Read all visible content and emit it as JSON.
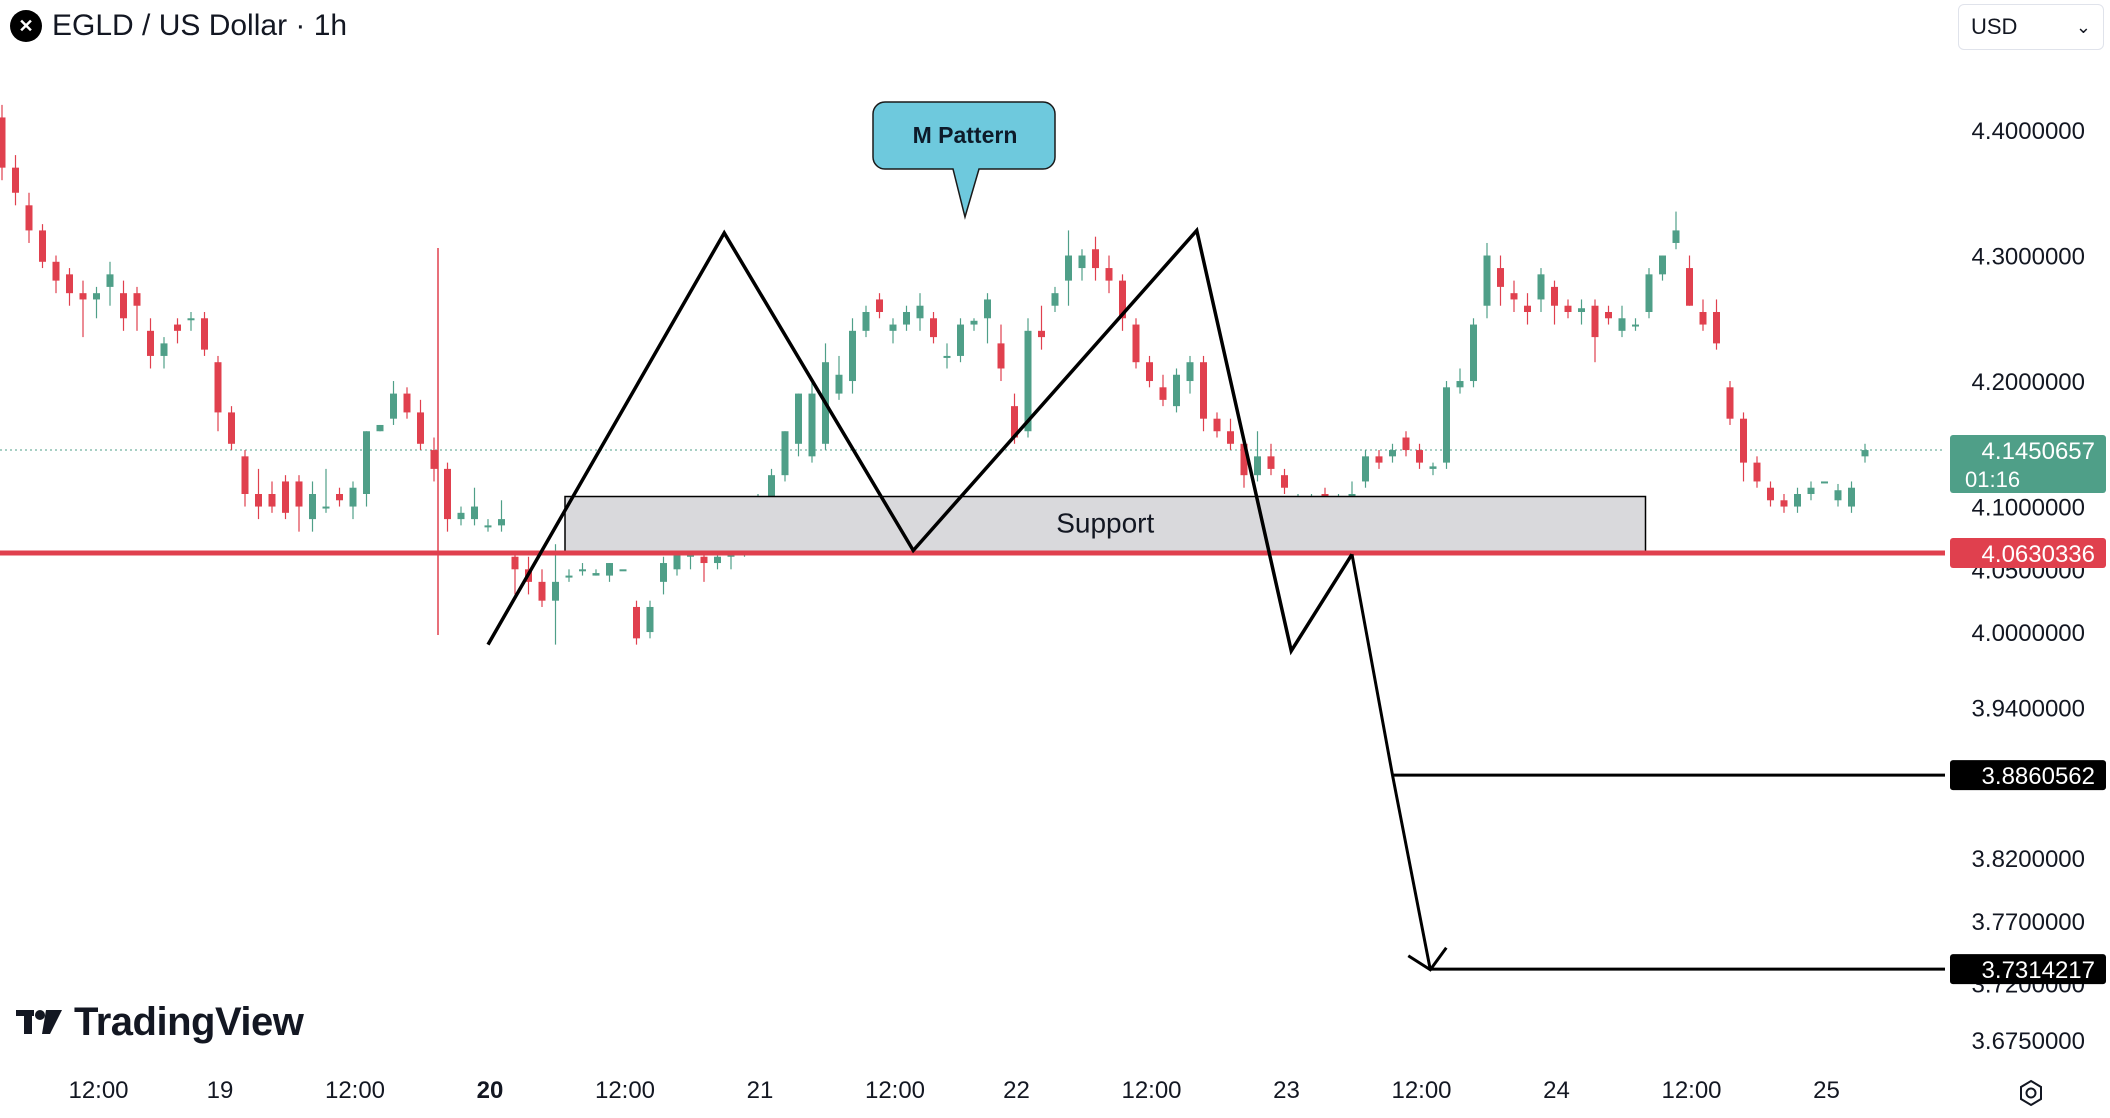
{
  "header": {
    "title": "EGLD / US Dollar · 1h",
    "logo_glyph": "✕"
  },
  "currency": {
    "selected": "USD"
  },
  "branding": {
    "name": "TradingView"
  },
  "colors": {
    "up": "#4f9f88",
    "down": "#e0404e",
    "support_line": "#e0404e",
    "support_fill": "#d9d9dc",
    "callout": "#6ec9dd",
    "target_label_bg": "#000000",
    "current_label_bg": "#4f9f88"
  },
  "chart_data": {
    "type": "candlestick",
    "ylim": [
      3.64,
      4.45
    ],
    "y_ticks": [
      {
        "value": 4.4,
        "label": "4.4000000"
      },
      {
        "value": 4.3,
        "label": "4.3000000"
      },
      {
        "value": 4.2,
        "label": "4.2000000"
      },
      {
        "value": 4.1,
        "label": "4.1000000"
      },
      {
        "value": 4.05,
        "label": "4.0500000"
      },
      {
        "value": 4.0,
        "label": "4.0000000"
      },
      {
        "value": 3.94,
        "label": "3.9400000"
      },
      {
        "value": 3.82,
        "label": "3.8200000"
      },
      {
        "value": 3.77,
        "label": "3.7700000"
      },
      {
        "value": 3.72,
        "label": "3.7200000"
      },
      {
        "value": 3.675,
        "label": "3.6750000"
      }
    ],
    "x_ticks": [
      {
        "index": 7,
        "label": "12:00",
        "bold": false
      },
      {
        "index": 16,
        "label": "19",
        "bold": false
      },
      {
        "index": 26,
        "label": "12:00",
        "bold": false
      },
      {
        "index": 36,
        "label": "20",
        "bold": true
      },
      {
        "index": 46,
        "label": "12:00",
        "bold": false
      },
      {
        "index": 56,
        "label": "21",
        "bold": false
      },
      {
        "index": 66,
        "label": "12:00",
        "bold": false
      },
      {
        "index": 75,
        "label": "22",
        "bold": false
      },
      {
        "index": 85,
        "label": "12:00",
        "bold": false
      },
      {
        "index": 95,
        "label": "23",
        "bold": false
      },
      {
        "index": 105,
        "label": "12:00",
        "bold": false
      },
      {
        "index": 115,
        "label": "24",
        "bold": false
      },
      {
        "index": 125,
        "label": "12:00",
        "bold": false
      },
      {
        "index": 135,
        "label": "25",
        "bold": false
      }
    ],
    "ohlc": [
      [
        4.41,
        4.42,
        4.36,
        4.37
      ],
      [
        4.37,
        4.38,
        4.34,
        4.35
      ],
      [
        4.34,
        4.35,
        4.31,
        4.32
      ],
      [
        4.32,
        4.325,
        4.29,
        4.295
      ],
      [
        4.295,
        4.3,
        4.27,
        4.28
      ],
      [
        4.285,
        4.29,
        4.26,
        4.27
      ],
      [
        4.27,
        4.28,
        4.235,
        4.265
      ],
      [
        4.265,
        4.275,
        4.25,
        4.27
      ],
      [
        4.275,
        4.295,
        4.26,
        4.285
      ],
      [
        4.27,
        4.28,
        4.24,
        4.25
      ],
      [
        4.27,
        4.275,
        4.24,
        4.26
      ],
      [
        4.24,
        4.25,
        4.21,
        4.22
      ],
      [
        4.22,
        4.235,
        4.21,
        4.23
      ],
      [
        4.245,
        4.25,
        4.23,
        4.24
      ],
      [
        4.25,
        4.255,
        4.24,
        4.25
      ],
      [
        4.25,
        4.255,
        4.22,
        4.225
      ],
      [
        4.215,
        4.22,
        4.16,
        4.175
      ],
      [
        4.175,
        4.18,
        4.145,
        4.15
      ],
      [
        4.14,
        4.145,
        4.1,
        4.11
      ],
      [
        4.11,
        4.13,
        4.09,
        4.1
      ],
      [
        4.11,
        4.12,
        4.095,
        4.1
      ],
      [
        4.12,
        4.125,
        4.09,
        4.095
      ],
      [
        4.12,
        4.125,
        4.08,
        4.1
      ],
      [
        4.09,
        4.12,
        4.08,
        4.11
      ],
      [
        4.1,
        4.13,
        4.095,
        4.1
      ],
      [
        4.11,
        4.115,
        4.1,
        4.105
      ],
      [
        4.1,
        4.12,
        4.09,
        4.115
      ],
      [
        4.11,
        4.16,
        4.1,
        4.16
      ],
      [
        4.16,
        4.165,
        4.16,
        4.165
      ],
      [
        4.17,
        4.2,
        4.165,
        4.19
      ],
      [
        4.19,
        4.195,
        4.17,
        4.175
      ],
      [
        4.175,
        4.185,
        4.145,
        4.15
      ],
      [
        4.145,
        4.155,
        4.12,
        4.13
      ],
      [
        4.13,
        4.135,
        4.08,
        4.09
      ],
      [
        4.09,
        4.1,
        4.085,
        4.095
      ],
      [
        4.09,
        4.115,
        4.085,
        4.1
      ],
      [
        4.085,
        4.09,
        4.08,
        4.085
      ],
      [
        4.085,
        4.105,
        4.08,
        4.09
      ],
      [
        4.06,
        4.065,
        4.03,
        4.05
      ],
      [
        4.05,
        4.06,
        4.03,
        4.04
      ],
      [
        4.04,
        4.05,
        4.02,
        4.025
      ],
      [
        4.025,
        4.07,
        3.99,
        4.04
      ],
      [
        4.045,
        4.05,
        4.04,
        4.045
      ],
      [
        4.05,
        4.055,
        4.045,
        4.05
      ],
      [
        4.045,
        4.05,
        4.045,
        4.047
      ],
      [
        4.045,
        4.055,
        4.04,
        4.055
      ],
      [
        4.05,
        4.05,
        4.05,
        4.05
      ],
      [
        4.02,
        4.025,
        3.99,
        3.995
      ],
      [
        4.0,
        4.025,
        3.995,
        4.02
      ],
      [
        4.04,
        4.06,
        4.03,
        4.055
      ],
      [
        4.05,
        4.085,
        4.045,
        4.08
      ],
      [
        4.06,
        4.07,
        4.05,
        4.065
      ],
      [
        4.06,
        4.065,
        4.04,
        4.055
      ],
      [
        4.055,
        4.07,
        4.05,
        4.06
      ],
      [
        4.06,
        4.075,
        4.05,
        4.07
      ],
      [
        4.07,
        4.09,
        4.06,
        4.085
      ],
      [
        4.085,
        4.11,
        4.08,
        4.105
      ],
      [
        4.105,
        4.13,
        4.1,
        4.125
      ],
      [
        4.125,
        4.16,
        4.12,
        4.16
      ],
      [
        4.15,
        4.19,
        4.14,
        4.19
      ],
      [
        4.14,
        4.2,
        4.135,
        4.19
      ],
      [
        4.15,
        4.23,
        4.145,
        4.215
      ],
      [
        4.19,
        4.22,
        4.185,
        4.205
      ],
      [
        4.2,
        4.25,
        4.19,
        4.24
      ],
      [
        4.24,
        4.26,
        4.235,
        4.255
      ],
      [
        4.265,
        4.27,
        4.25,
        4.255
      ],
      [
        4.24,
        4.25,
        4.23,
        4.245
      ],
      [
        4.245,
        4.26,
        4.24,
        4.255
      ],
      [
        4.25,
        4.27,
        4.24,
        4.26
      ],
      [
        4.25,
        4.255,
        4.23,
        4.235
      ],
      [
        4.22,
        4.23,
        4.21,
        4.22
      ],
      [
        4.22,
        4.25,
        4.215,
        4.245
      ],
      [
        4.245,
        4.25,
        4.24,
        4.248
      ],
      [
        4.25,
        4.27,
        4.23,
        4.265
      ],
      [
        4.23,
        4.245,
        4.2,
        4.21
      ],
      [
        4.18,
        4.19,
        4.15,
        4.155
      ],
      [
        4.16,
        4.25,
        4.155,
        4.24
      ],
      [
        4.24,
        4.26,
        4.225,
        4.235
      ],
      [
        4.26,
        4.275,
        4.255,
        4.27
      ],
      [
        4.28,
        4.32,
        4.26,
        4.3
      ]
    ],
    "ohlc_tail": [
      [
        4.29,
        4.305,
        4.28,
        4.3
      ],
      [
        4.305,
        4.315,
        4.28,
        4.29
      ],
      [
        4.29,
        4.3,
        4.27,
        4.28
      ],
      [
        4.28,
        4.285,
        4.24,
        4.25
      ],
      [
        4.245,
        4.25,
        4.21,
        4.215
      ],
      [
        4.215,
        4.22,
        4.195,
        4.2
      ],
      [
        4.195,
        4.205,
        4.18,
        4.185
      ],
      [
        4.18,
        4.21,
        4.175,
        4.205
      ],
      [
        4.2,
        4.22,
        4.19,
        4.215
      ],
      [
        4.215,
        4.22,
        4.16,
        4.17
      ],
      [
        4.17,
        4.175,
        4.155,
        4.16
      ],
      [
        4.16,
        4.17,
        4.145,
        4.15
      ],
      [
        4.15,
        4.155,
        4.115,
        4.125
      ],
      [
        4.125,
        4.16,
        4.12,
        4.14
      ],
      [
        4.14,
        4.15,
        4.125,
        4.13
      ],
      [
        4.125,
        4.13,
        4.11,
        4.115
      ],
      [
        4.1,
        4.11,
        4.075,
        4.1
      ],
      [
        4.1,
        4.11,
        4.09,
        4.105
      ],
      [
        4.11,
        4.115,
        4.065,
        4.075
      ],
      [
        4.075,
        4.11,
        4.07,
        4.1
      ],
      [
        4.1,
        4.12,
        4.095,
        4.11
      ],
      [
        4.12,
        4.145,
        4.115,
        4.14
      ],
      [
        4.14,
        4.145,
        4.13,
        4.135
      ],
      [
        4.14,
        4.15,
        4.135,
        4.145
      ],
      [
        4.155,
        4.16,
        4.14,
        4.145
      ],
      [
        4.145,
        4.15,
        4.13,
        4.135
      ],
      [
        4.13,
        4.135,
        4.125,
        4.132
      ],
      [
        4.135,
        4.2,
        4.13,
        4.195
      ],
      [
        4.195,
        4.21,
        4.19,
        4.2
      ],
      [
        4.2,
        4.25,
        4.195,
        4.245
      ],
      [
        4.26,
        4.31,
        4.25,
        4.3
      ],
      [
        4.29,
        4.3,
        4.26,
        4.275
      ],
      [
        4.27,
        4.28,
        4.255,
        4.265
      ],
      [
        4.26,
        4.27,
        4.245,
        4.255
      ],
      [
        4.265,
        4.29,
        4.255,
        4.285
      ],
      [
        4.275,
        4.28,
        4.245,
        4.26
      ],
      [
        4.26,
        4.265,
        4.25,
        4.255
      ],
      [
        4.255,
        4.265,
        4.245,
        4.258
      ],
      [
        4.26,
        4.265,
        4.215,
        4.235
      ],
      [
        4.255,
        4.26,
        4.245,
        4.25
      ],
      [
        4.24,
        4.26,
        4.235,
        4.25
      ],
      [
        4.245,
        4.25,
        4.24,
        4.245
      ],
      [
        4.255,
        4.29,
        4.25,
        4.285
      ],
      [
        4.285,
        4.3,
        4.28,
        4.3
      ],
      [
        4.31,
        4.335,
        4.305,
        4.32
      ],
      [
        4.29,
        4.3,
        4.26,
        4.26
      ],
      [
        4.255,
        4.265,
        4.24,
        4.245
      ],
      [
        4.255,
        4.265,
        4.225,
        4.23
      ],
      [
        4.195,
        4.2,
        4.165,
        4.17
      ],
      [
        4.17,
        4.175,
        4.12,
        4.135
      ],
      [
        4.135,
        4.14,
        4.115,
        4.12
      ],
      [
        4.115,
        4.12,
        4.1,
        4.105
      ],
      [
        4.105,
        4.11,
        4.095,
        4.1
      ],
      [
        4.1,
        4.115,
        4.095,
        4.11
      ],
      [
        4.11,
        4.12,
        4.105,
        4.115
      ],
      [
        4.12,
        4.12,
        4.12,
        4.12
      ],
      [
        4.105,
        4.118,
        4.1,
        4.113
      ],
      [
        4.1,
        4.12,
        4.095,
        4.115
      ],
      [
        4.14,
        4.15,
        4.135,
        4.145
      ]
    ],
    "last_price": {
      "value": 4.1450657,
      "label": "4.1450657",
      "countdown": "01:16"
    },
    "support_level": {
      "value": 4.0630336,
      "label": "4.0630336"
    },
    "support_zone": {
      "label": "Support",
      "y_top": 4.108,
      "y_bottom": 4.063,
      "x_from": 38,
      "x_to": 121
    },
    "pattern_callout": {
      "label": "M Pattern",
      "anchor_index": 70,
      "anchor_value": 4.316
    },
    "pattern_path": [
      {
        "i": 36,
        "v": 3.99
      },
      {
        "i": 53.5,
        "v": 4.318
      },
      {
        "i": 67.5,
        "v": 4.065
      },
      {
        "i": 88.5,
        "v": 4.32
      },
      {
        "i": 95.5,
        "v": 3.985
      },
      {
        "i": 100,
        "v": 4.062
      }
    ],
    "projection_path": [
      {
        "i": 100,
        "v": 4.062
      },
      {
        "i": 103,
        "v": 3.886
      },
      {
        "i": 105.8,
        "v": 3.731
      }
    ],
    "targets": [
      {
        "value": 3.8860562,
        "label": "3.8860562",
        "from_index": 103
      },
      {
        "value": 3.7314217,
        "label": "3.7314217",
        "from_index": 105.8
      }
    ],
    "vertical_marker_index": 32
  }
}
